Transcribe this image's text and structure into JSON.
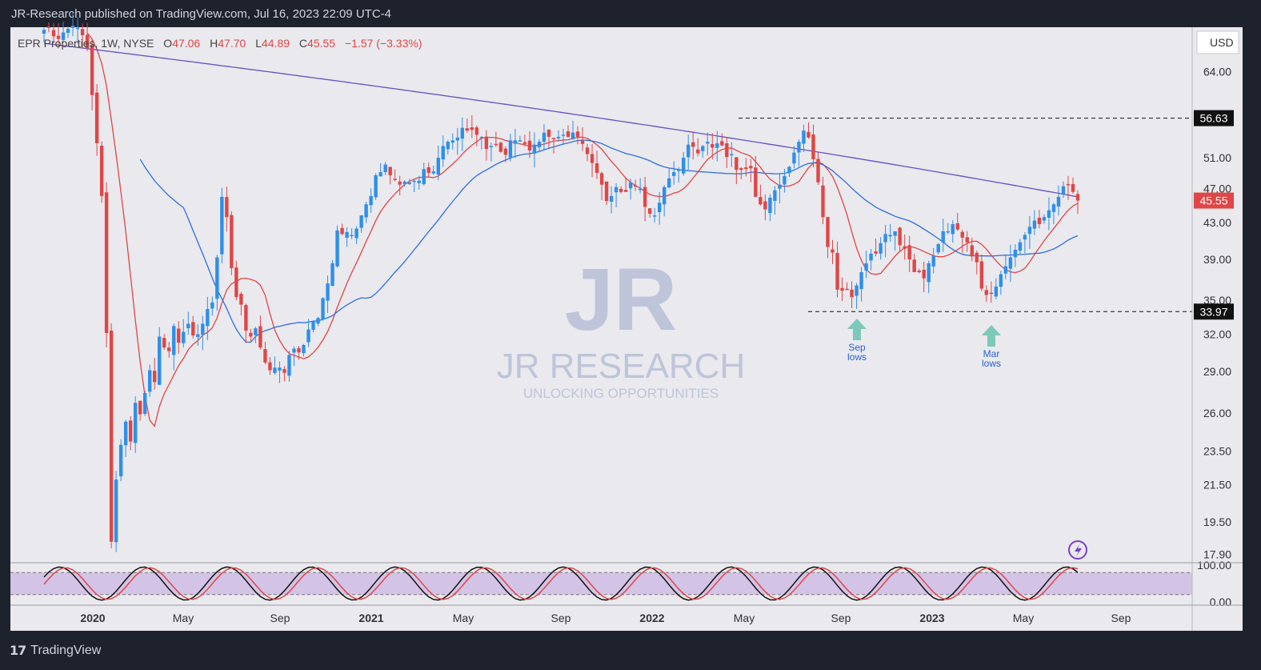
{
  "header": {
    "published": "JR-Research published on TradingView.com, Jul 16, 2023 22:09 UTC-4"
  },
  "legend": {
    "symbol": "EPR Properties, 1W, NYSE",
    "o_label": "O",
    "o_value": "47.06",
    "h_label": "H",
    "h_value": "47.70",
    "l_label": "L",
    "l_value": "44.89",
    "c_label": "C",
    "c_value": "45.55",
    "change": "−1.57 (−3.33%)"
  },
  "currency": "USD",
  "watermark": {
    "logo": "JR",
    "title": "JR RESEARCH",
    "subtitle": "UNLOCKING OPPORTUNITIES"
  },
  "annotations": {
    "sep": [
      "Sep",
      "lows"
    ],
    "mar": [
      "Mar",
      "lows"
    ]
  },
  "brand": {
    "name": "TradingView",
    "mark": "17"
  },
  "chart_data": {
    "type": "candlestick",
    "price_axis_ticks": [
      64.0,
      56.63,
      51.0,
      47.0,
      43.0,
      39.0,
      35.0,
      33.97,
      32.0,
      29.0,
      26.0,
      23.5,
      21.5,
      19.5,
      17.9
    ],
    "price_axis_labels": [
      "64.00",
      "51.00",
      "47.00",
      "43.00",
      "39.00",
      "35.00",
      "32.00",
      "29.00",
      "26.00",
      "23.50",
      "21.50",
      "19.50",
      "17.90"
    ],
    "ylim": [
      17.5,
      72
    ],
    "y_scale": "log",
    "resistance_level": {
      "value": 56.63,
      "label": "56.63"
    },
    "support_level": {
      "value": 33.97,
      "label": "33.97"
    },
    "last_price": {
      "value": 45.55,
      "label": "45.55"
    },
    "x_tick_labels": [
      "2020",
      "May",
      "Sep",
      "2021",
      "May",
      "Sep",
      "2022",
      "May",
      "Sep",
      "2023",
      "May",
      "Sep"
    ],
    "oscillator": {
      "labels": [
        "100.00",
        "0.00"
      ],
      "band_upper": 80,
      "band_lower": 20
    },
    "series_colors": {
      "up": "#2f8fe8",
      "down": "#e04646",
      "ma_fast": "#e04646",
      "ma_mid": "#2f6fe0",
      "ma_slow": "#6a4fc0"
    },
    "weekly_closes": [
      71.5,
      72.1,
      70.3,
      69.8,
      71.0,
      71.7,
      72.3,
      71.9,
      70.5,
      68.1,
      60.2,
      53.0,
      46.1,
      32.1,
      18.5,
      21.8,
      23.9,
      25.4,
      24.1,
      26.7,
      25.9,
      27.4,
      29.1,
      28.2,
      31.8,
      30.9,
      30.6,
      32.7,
      31.3,
      32.2,
      32.9,
      31.9,
      32.0,
      32.9,
      34.2,
      34.8,
      39.2,
      46.0,
      43.6,
      38.1,
      35.3,
      34.6,
      32.3,
      31.8,
      32.5,
      30.9,
      29.7,
      29.1,
      29.3,
      29.3,
      28.9,
      30.3,
      30.8,
      30.5,
      31.1,
      32.4,
      33.1,
      33.4,
      35.2,
      36.6,
      38.6,
      42.1,
      41.7,
      41.9,
      41.6,
      42.3,
      43.8,
      45.1,
      46.1,
      48.7,
      49.1,
      50.1,
      48.7,
      48.2,
      47.5,
      47.9,
      47.8,
      48.0,
      48.0,
      49.5,
      49.0,
      49.2,
      51.0,
      52.6,
      53.2,
      53.4,
      53.8,
      55.2,
      54.8,
      54.9,
      54.2,
      53.9,
      52.2,
      52.6,
      52.8,
      51.8,
      51.4,
      53.4,
      53.4,
      53.4,
      52.9,
      52.0,
      52.8,
      53.2,
      54.5,
      53.9,
      53.6,
      53.9,
      54.2,
      53.9,
      54.5,
      53.9,
      52.9,
      51.5,
      50.3,
      49.0,
      47.5,
      45.5,
      46.1,
      47.2,
      46.6,
      46.6,
      47.8,
      47.3,
      47.0,
      44.8,
      44.0,
      43.8,
      45.3,
      47.2,
      48.3,
      49.1,
      49.4,
      51.0,
      52.8,
      52.5,
      51.6,
      52.6,
      53.2,
      52.4,
      53.0,
      52.7,
      51.1,
      51.5,
      49.4,
      49.4,
      49.5,
      49.6,
      46.0,
      45.1,
      44.5,
      45.9,
      46.8,
      47.5,
      48.6,
      49.8,
      51.7,
      53.2,
      54.8,
      53.8,
      50.8,
      47.8,
      43.6,
      40.3,
      39.7,
      36.0,
      35.9,
      36.0,
      35.3,
      36.4,
      37.7,
      38.6,
      39.6,
      39.6,
      40.7,
      41.7,
      41.6,
      42.0,
      40.5,
      40.1,
      39.0,
      37.7,
      37.7,
      37.1,
      38.6,
      39.4,
      40.6,
      42.0,
      42.0,
      42.8,
      42.2,
      41.3,
      40.8,
      39.3,
      38.7,
      36.1,
      35.5,
      35.6,
      36.3,
      37.5,
      38.3,
      39.2,
      40.0,
      40.8,
      41.6,
      42.5,
      43.2,
      42.8,
      43.6,
      44.4,
      45.1,
      46.0,
      47.3,
      47.5,
      46.6,
      45.55
    ]
  }
}
